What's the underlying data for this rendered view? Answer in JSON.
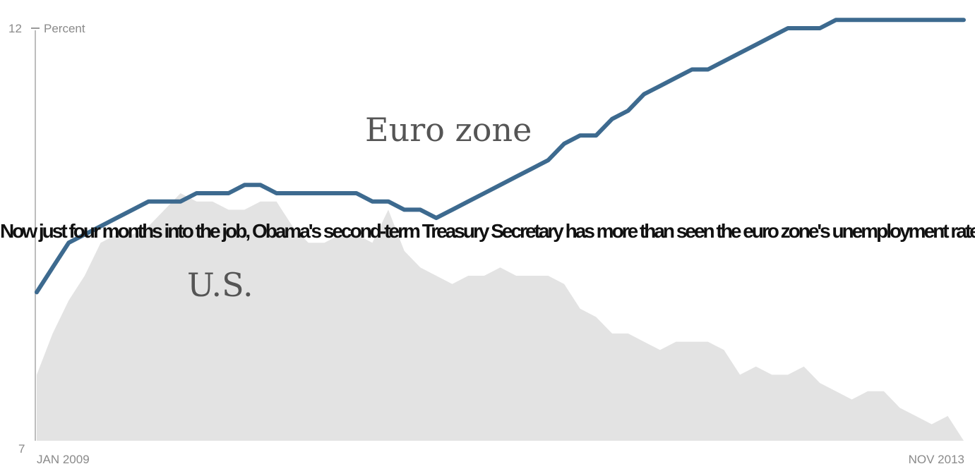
{
  "chart_data": {
    "type": "area",
    "yunit_label": "Percent",
    "ylim": [
      7,
      12
    ],
    "y_ticks": [
      "12",
      "7"
    ],
    "x_start_label": "JAN 2009",
    "x_end_label": "NOV 2013",
    "grid": false,
    "legend": "none",
    "series": [
      {
        "name": "Euro zone",
        "color": "#3d6a8f",
        "style": "line",
        "x": [
          "2009-01",
          "2009-02",
          "2009-03",
          "2009-04",
          "2009-05",
          "2009-06",
          "2009-07",
          "2009-08",
          "2009-09",
          "2009-10",
          "2009-11",
          "2009-12",
          "2010-01",
          "2010-02",
          "2010-03",
          "2010-04",
          "2010-05",
          "2010-06",
          "2010-07",
          "2010-08",
          "2010-09",
          "2010-10",
          "2010-11",
          "2010-12",
          "2011-01",
          "2011-02",
          "2011-03",
          "2011-04",
          "2011-05",
          "2011-06",
          "2011-07",
          "2011-08",
          "2011-09",
          "2011-10",
          "2011-11",
          "2011-12",
          "2012-01",
          "2012-02",
          "2012-03",
          "2012-04",
          "2012-05",
          "2012-06",
          "2012-07",
          "2012-08",
          "2012-09",
          "2012-10",
          "2012-11",
          "2012-12",
          "2013-01",
          "2013-02",
          "2013-03",
          "2013-04",
          "2013-05",
          "2013-06",
          "2013-07",
          "2013-08",
          "2013-09",
          "2013-10",
          "2013-11"
        ],
        "values": [
          8.8,
          9.1,
          9.4,
          9.5,
          9.6,
          9.7,
          9.8,
          9.9,
          9.9,
          9.9,
          10.0,
          10.0,
          10.0,
          10.1,
          10.1,
          10.0,
          10.0,
          10.0,
          10.0,
          10.0,
          10.0,
          9.9,
          9.9,
          9.8,
          9.8,
          9.7,
          9.8,
          9.9,
          10.0,
          10.1,
          10.2,
          10.3,
          10.4,
          10.6,
          10.7,
          10.7,
          10.9,
          11.0,
          11.2,
          11.3,
          11.4,
          11.5,
          11.5,
          11.6,
          11.7,
          11.8,
          11.9,
          12.0,
          12.0,
          12.0,
          12.1,
          12.1,
          12.1,
          12.1,
          12.1,
          12.1,
          12.1,
          12.1,
          12.1
        ]
      },
      {
        "name": "U.S.",
        "color": "#e3e3e3",
        "style": "area",
        "x": [
          "2009-01",
          "2009-02",
          "2009-03",
          "2009-04",
          "2009-05",
          "2009-06",
          "2009-07",
          "2009-08",
          "2009-09",
          "2009-10",
          "2009-11",
          "2009-12",
          "2010-01",
          "2010-02",
          "2010-03",
          "2010-04",
          "2010-05",
          "2010-06",
          "2010-07",
          "2010-08",
          "2010-09",
          "2010-10",
          "2010-11",
          "2010-12",
          "2011-01",
          "2011-02",
          "2011-03",
          "2011-04",
          "2011-05",
          "2011-06",
          "2011-07",
          "2011-08",
          "2011-09",
          "2011-10",
          "2011-11",
          "2011-12",
          "2012-01",
          "2012-02",
          "2012-03",
          "2012-04",
          "2012-05",
          "2012-06",
          "2012-07",
          "2012-08",
          "2012-09",
          "2012-10",
          "2012-11",
          "2012-12",
          "2013-01",
          "2013-02",
          "2013-03",
          "2013-04",
          "2013-05",
          "2013-06",
          "2013-07",
          "2013-08",
          "2013-09",
          "2013-10",
          "2013-11"
        ],
        "values": [
          7.8,
          8.3,
          8.7,
          9.0,
          9.4,
          9.5,
          9.5,
          9.6,
          9.8,
          10.0,
          9.9,
          9.9,
          9.8,
          9.8,
          9.9,
          9.9,
          9.6,
          9.4,
          9.4,
          9.5,
          9.5,
          9.4,
          9.8,
          9.3,
          9.1,
          9.0,
          8.9,
          9.0,
          9.0,
          9.1,
          9.0,
          9.0,
          9.0,
          8.9,
          8.6,
          8.5,
          8.3,
          8.3,
          8.2,
          8.1,
          8.2,
          8.2,
          8.2,
          8.1,
          7.8,
          7.9,
          7.8,
          7.8,
          7.9,
          7.7,
          7.6,
          7.5,
          7.6,
          7.6,
          7.4,
          7.3,
          7.2,
          7.3,
          7.0
        ]
      }
    ],
    "annotations": [
      "Euro zone",
      "U.S."
    ]
  },
  "overlay_text": "Now just four months into the job, Obama's second-term Treasury Secretary has more than seen the euro zone's unemployment rate pass that of the U.S."
}
